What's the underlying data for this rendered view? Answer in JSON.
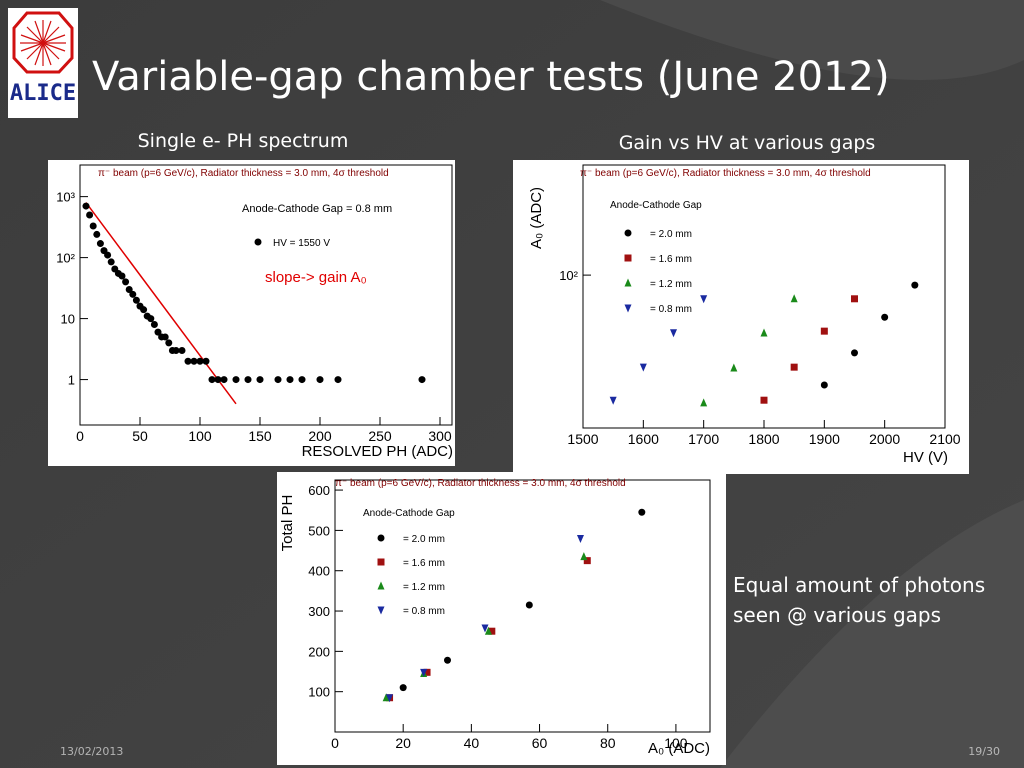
{
  "slide": {
    "title": "Variable-gap chamber tests (June 2012)",
    "logo": "ALICE",
    "caption_left": "Single e- PH spectrum",
    "caption_right": "Gain vs HV at various gaps",
    "note": "Equal amount of photons seen @ various gaps",
    "date": "13/02/2013",
    "page": "19/30"
  },
  "chart_data": [
    {
      "type": "scatter",
      "log_y": true,
      "xlabel": "RESOLVED PH (ADC)",
      "annotations": [
        "π⁻ beam (p=6 GeV/c), Radiator thickness = 3.0 mm, 4σ threshold",
        "Anode-Cathode Gap = 0.8 mm",
        "slope-> gain A₀"
      ],
      "xlim": [
        0,
        310
      ],
      "xticks": [
        0,
        50,
        100,
        150,
        200,
        250,
        300
      ],
      "ylim": [
        0.18,
        3300
      ],
      "yticks": [
        1,
        10,
        {
          "value": 100,
          "label": "10²"
        },
        {
          "value": 1000,
          "label": "10³"
        }
      ],
      "series": [
        {
          "name": "HV = 1550 V",
          "color": "#000000",
          "marker": "circle",
          "x": [
            5,
            8,
            11,
            14,
            17,
            20,
            23,
            26,
            29,
            32,
            35,
            38,
            41,
            44,
            47,
            50,
            53,
            56,
            59,
            62,
            65,
            68,
            71,
            74,
            77,
            80,
            85,
            90,
            95,
            100,
            105,
            110,
            115,
            120,
            130,
            140,
            150,
            165,
            175,
            185,
            200,
            215,
            285
          ],
          "values": [
            700,
            500,
            330,
            240,
            170,
            130,
            110,
            85,
            65,
            55,
            50,
            40,
            30,
            25,
            20,
            16,
            14,
            11,
            10,
            8,
            6,
            5,
            5,
            4,
            3,
            3,
            3,
            2,
            2,
            2,
            2,
            1,
            1,
            1,
            1,
            1,
            1,
            1,
            1,
            1,
            1,
            1,
            1
          ]
        }
      ],
      "fit": {
        "x": [
          5,
          130
        ],
        "values": [
          800,
          0.4
        ],
        "color": "#e00000"
      }
    },
    {
      "type": "scatter",
      "log_y": true,
      "xlabel": "HV (V)",
      "ylabel": "A₀ (ADC)",
      "annotations": [
        "π⁻ beam (p=6 GeV/c), Radiator thickness = 3.0 mm, 4σ threshold"
      ],
      "legend_title": "Anode-Cathode Gap",
      "xlim": [
        1500,
        2100
      ],
      "xticks": [
        1500,
        1600,
        1700,
        1800,
        1900,
        2000,
        2100
      ],
      "ylim": [
        10,
        525
      ],
      "yticks": [
        {
          "value": 100,
          "label": "10²"
        }
      ],
      "series": [
        {
          "name": "= 2.0 mm",
          "color": "#000000",
          "marker": "circle",
          "x": [
            1900,
            1950,
            2000,
            2050
          ],
          "values": [
            19.1,
            31,
            53,
            86
          ]
        },
        {
          "name": "= 1.6 mm",
          "color": "#a01010",
          "marker": "square",
          "x": [
            1800,
            1850,
            1900,
            1950
          ],
          "values": [
            15.2,
            25,
            43,
            70
          ]
        },
        {
          "name": "= 1.2 mm",
          "color": "#1a8a1a",
          "marker": "triangle-up",
          "x": [
            1700,
            1750,
            1800,
            1850
          ],
          "values": [
            14.6,
            24.7,
            41.8,
            70
          ]
        },
        {
          "name": "= 0.8 mm",
          "color": "#1a2aa0",
          "marker": "triangle-down",
          "x": [
            1550,
            1600,
            1650,
            1700
          ],
          "values": [
            15.2,
            25,
            42,
            70
          ]
        }
      ]
    },
    {
      "type": "scatter",
      "xlabel": "A₀ (ADC)",
      "ylabel": "Total PH",
      "annotations": [
        "π⁻ beam (p=6 GeV/c), Radiator thickness = 3.0 mm, 4σ threshold"
      ],
      "legend_title": "Anode-Cathode Gap",
      "xlim": [
        0,
        110
      ],
      "xticks": [
        0,
        20,
        40,
        60,
        80,
        100
      ],
      "ylim": [
        0,
        625
      ],
      "yticks": [
        100,
        200,
        300,
        400,
        500,
        600
      ],
      "series": [
        {
          "name": "= 2.0 mm",
          "color": "#000000",
          "marker": "circle",
          "x": [
            20,
            33,
            57,
            90
          ],
          "values": [
            110,
            178,
            315,
            545
          ]
        },
        {
          "name": "= 1.6 mm",
          "color": "#a01010",
          "marker": "square",
          "x": [
            16,
            27,
            46,
            74
          ],
          "values": [
            85,
            148,
            250,
            425
          ]
        },
        {
          "name": "= 1.2 mm",
          "color": "#1a8a1a",
          "marker": "triangle-up",
          "x": [
            15,
            26,
            45,
            73
          ],
          "values": [
            85,
            145,
            250,
            435
          ]
        },
        {
          "name": "= 0.8 mm",
          "color": "#1a2aa0",
          "marker": "triangle-down",
          "x": [
            16,
            26,
            44,
            72
          ],
          "values": [
            85,
            148,
            258,
            480
          ]
        }
      ]
    }
  ]
}
